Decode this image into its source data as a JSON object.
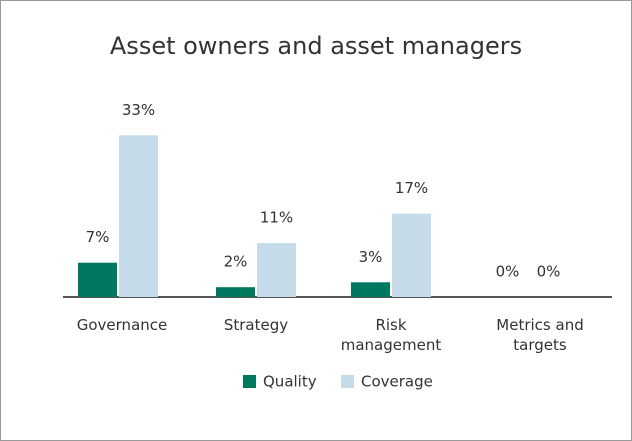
{
  "chart_data": {
    "type": "bar",
    "title": "Asset owners and asset managers",
    "categories": [
      "Governance",
      "Strategy",
      "Risk management",
      "Metrics and targets"
    ],
    "series": [
      {
        "name": "Quality",
        "color": "#00775f",
        "values": [
          7,
          2,
          3,
          0
        ],
        "value_labels": [
          "7%",
          "2%",
          "3%",
          "0%"
        ]
      },
      {
        "name": "Coverage",
        "color": "#c5dbea",
        "values": [
          33,
          11,
          17,
          0
        ],
        "value_labels": [
          "33%",
          "11%",
          "17%",
          "0%"
        ]
      }
    ]
  }
}
